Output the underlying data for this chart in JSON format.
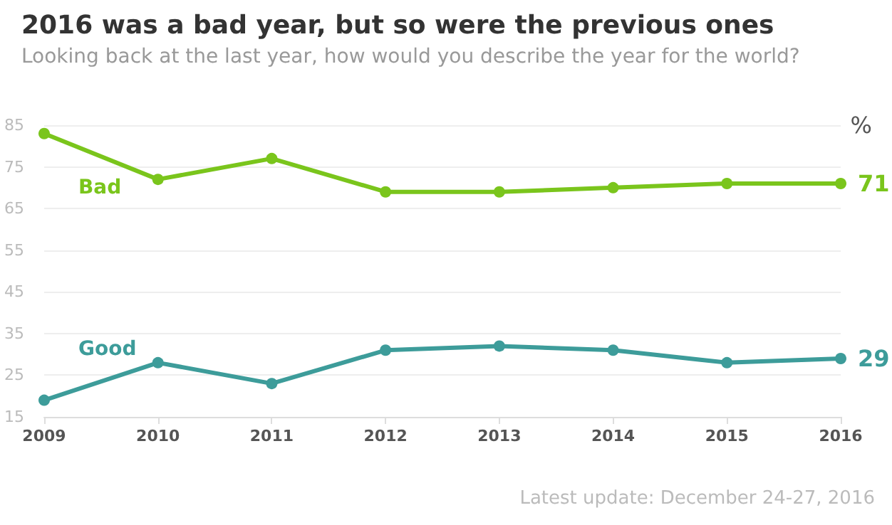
{
  "chart_data": {
    "type": "line",
    "title": "2016 was a bad year, but so were the previous ones",
    "subtitle": "Looking back at the last year, how would you describe the year for the world?",
    "ylabel": "%",
    "categories": [
      "2009",
      "2010",
      "2011",
      "2012",
      "2013",
      "2014",
      "2015",
      "2016"
    ],
    "series": [
      {
        "name": "Bad",
        "color": "#7ac51c",
        "values": [
          83,
          72,
          77,
          69,
          69,
          70,
          71,
          71
        ],
        "value_labels": [
          null,
          null,
          null,
          null,
          null,
          null,
          null,
          "71"
        ]
      },
      {
        "name": "Good",
        "color": "#3d9c9a",
        "values": [
          19,
          28,
          23,
          31,
          32,
          31,
          28,
          29
        ],
        "value_labels": [
          null,
          null,
          null,
          null,
          null,
          null,
          null,
          "29"
        ]
      }
    ],
    "ylim": [
      15,
      85
    ],
    "yticks": [
      15,
      25,
      35,
      45,
      55,
      65,
      75,
      85
    ],
    "grid": "y",
    "legend": false,
    "marker": "circle",
    "line_style": "solid",
    "annotations": [
      "Latest update: December 24-27, 2016"
    ]
  }
}
